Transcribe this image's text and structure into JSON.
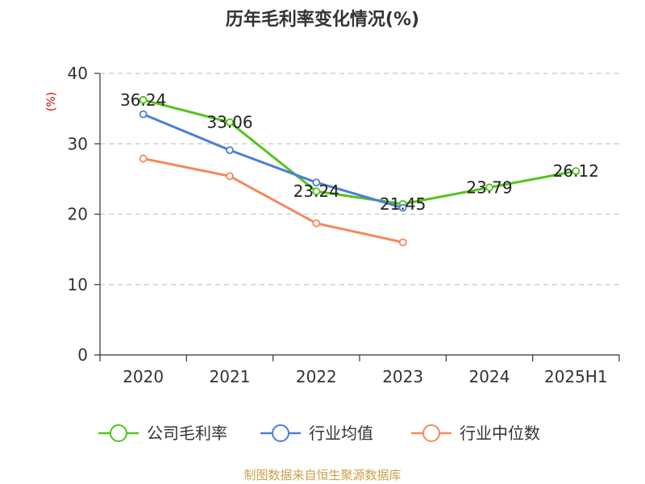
{
  "chart_data": {
    "type": "line",
    "title": "历年毛利率变化情况(%)",
    "ylabel": "(%)",
    "xlabel": "",
    "categories": [
      "2020",
      "2021",
      "2022",
      "2023",
      "2024",
      "2025H1"
    ],
    "ylim": [
      0,
      40
    ],
    "yticks": [
      0,
      10,
      20,
      30,
      40
    ],
    "grid": "horizontal-dashed",
    "legend_position": "bottom",
    "series": [
      {
        "name": "公司毛利率",
        "color": "#52c41a",
        "values": [
          36.24,
          33.06,
          23.24,
          21.45,
          23.79,
          26.12
        ],
        "labels": [
          "36.24",
          "33.06",
          "23.24",
          "21.45",
          "23.79",
          "26.12"
        ]
      },
      {
        "name": "行业均值",
        "color": "#4a7fd9",
        "values": [
          34.2,
          29.1,
          24.5,
          20.9,
          null,
          null
        ]
      },
      {
        "name": "行业中位数",
        "color": "#f5895a",
        "values": [
          27.9,
          25.4,
          18.7,
          16.0,
          null,
          null
        ]
      }
    ]
  },
  "source": "制图数据来自恒生聚源数据库"
}
